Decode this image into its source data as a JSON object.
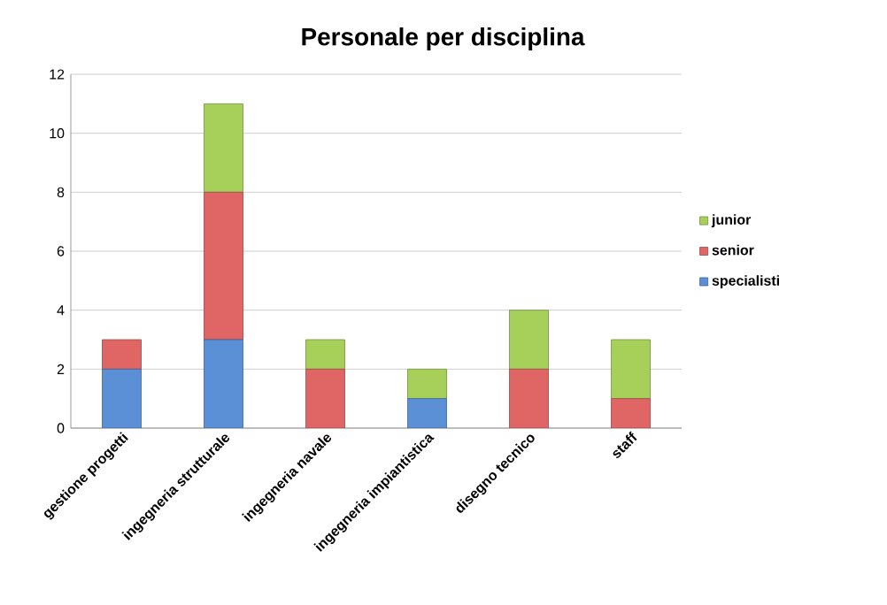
{
  "chart_data": {
    "type": "bar",
    "title": "Personale per disciplina",
    "stacked": true,
    "categories": [
      "gestione progetti",
      "ingegneria strutturale",
      "ingegneria navale",
      "ingegneria impiantistica",
      "disegno tecnico",
      "staff"
    ],
    "series": [
      {
        "name": "specialisti",
        "color": "#5b8fd6",
        "values": [
          2,
          3,
          0,
          1,
          0,
          0
        ]
      },
      {
        "name": "senior",
        "color": "#e06666",
        "values": [
          1,
          5,
          2,
          0,
          2,
          1
        ]
      },
      {
        "name": "junior",
        "color": "#a6d05a",
        "values": [
          0,
          3,
          1,
          1,
          2,
          2
        ]
      }
    ],
    "ylim": [
      0,
      12
    ],
    "yticks": [
      0,
      2,
      4,
      6,
      8,
      10,
      12
    ],
    "grid": "y",
    "legend": "right"
  }
}
